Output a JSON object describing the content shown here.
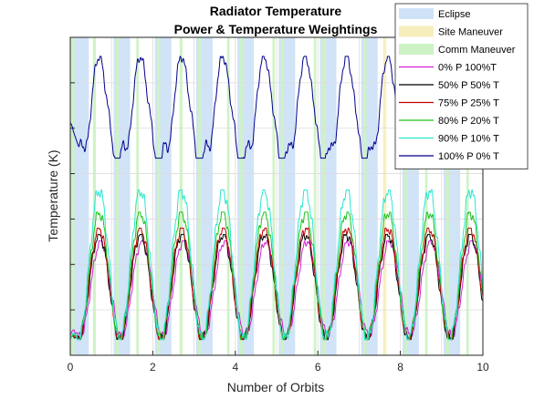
{
  "chart_data": {
    "type": "line",
    "title": "Radiator Temperature",
    "subtitle": "Power & Temperature Weightings",
    "xlabel": "Number of Orbits",
    "ylabel": "Temperature (K)",
    "xlim": [
      0,
      10
    ],
    "xticks": [
      "0",
      "2",
      "4",
      "6",
      "8",
      "10"
    ],
    "yticks": [],
    "grid": true,
    "legend_position": "top-right",
    "orbit_period": 1.0,
    "shaded_regions": [
      {
        "name": "Eclipse",
        "color": "#cfe2f7",
        "intervals": [
          [
            0.05,
            0.45
          ],
          [
            1.05,
            1.45
          ],
          [
            2.05,
            2.45
          ],
          [
            3.05,
            3.45
          ],
          [
            4.05,
            4.45
          ],
          [
            5.05,
            5.45
          ],
          [
            6.05,
            6.45
          ],
          [
            7.05,
            7.45
          ],
          [
            8.05,
            8.45
          ],
          [
            9.05,
            9.45
          ]
        ]
      },
      {
        "name": "Site Maneuver",
        "color": "#f7eebd",
        "intervals": [
          [
            7.58,
            7.66
          ]
        ]
      },
      {
        "name": "Comm Maneuver",
        "color": "#cdf2c4",
        "intervals": [
          [
            0.0,
            0.1
          ],
          [
            0.55,
            0.62
          ],
          [
            1.1,
            1.18
          ],
          [
            1.6,
            1.66
          ],
          [
            2.1,
            2.18
          ],
          [
            2.65,
            2.72
          ],
          [
            3.1,
            3.18
          ],
          [
            3.8,
            3.86
          ],
          [
            4.1,
            4.18
          ],
          [
            4.9,
            4.96
          ],
          [
            5.1,
            5.18
          ],
          [
            5.9,
            5.96
          ],
          [
            6.1,
            6.18
          ],
          [
            7.1,
            7.18
          ],
          [
            8.1,
            8.18
          ],
          [
            8.6,
            8.66
          ],
          [
            9.1,
            9.18
          ],
          [
            9.6,
            9.66
          ]
        ]
      }
    ],
    "series": [
      {
        "name": "0% P 100%T",
        "color": "#d21fd2",
        "min": 0.06,
        "max": 0.36,
        "phase": 0.24
      },
      {
        "name": "50% P 50% T",
        "color": "#000000",
        "min": 0.05,
        "max": 0.38,
        "phase": 0.2
      },
      {
        "name": "75% P 25% T",
        "color": "#c00000",
        "min": 0.05,
        "max": 0.4,
        "phase": 0.2
      },
      {
        "name": "80% P 20% T",
        "color": "#19c319",
        "min": 0.05,
        "max": 0.45,
        "phase": 0.2
      },
      {
        "name": "90% P 10% T",
        "color": "#29e6cf",
        "min": 0.05,
        "max": 0.52,
        "phase": 0.2
      },
      {
        "name": "100% P 0% T",
        "color": "#00008c",
        "min": 0.62,
        "max": 0.94,
        "phase": 0.2
      }
    ]
  }
}
